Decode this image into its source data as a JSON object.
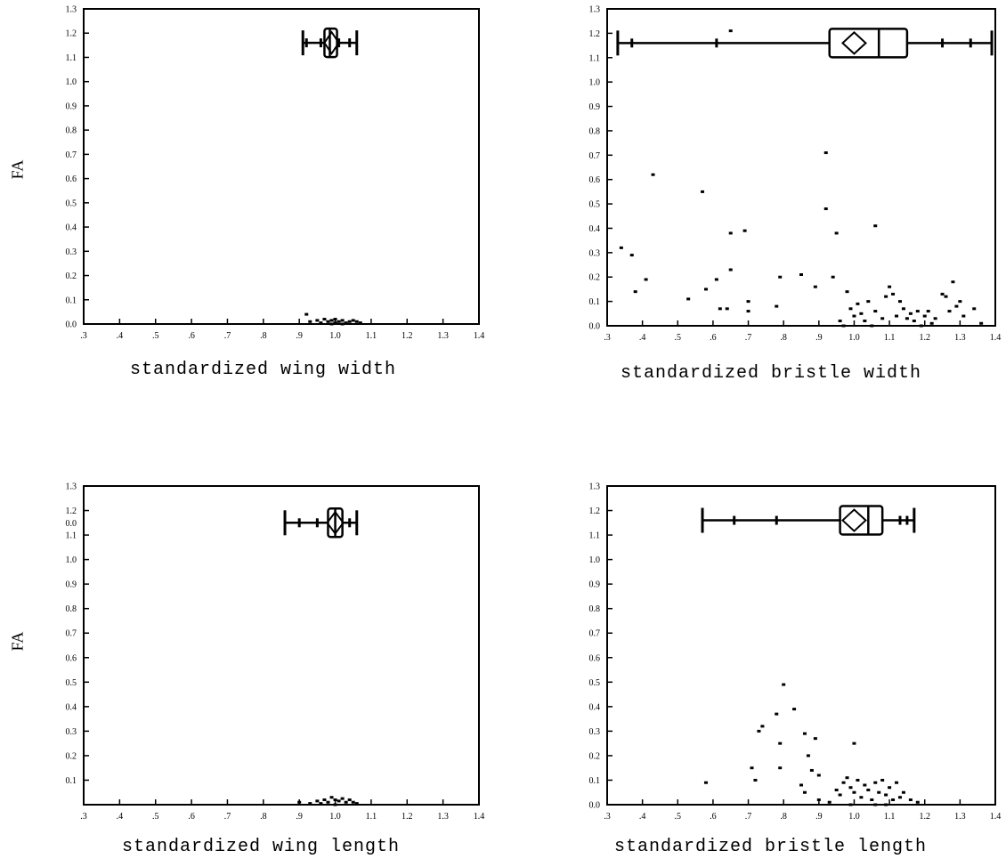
{
  "chart_data": [
    {
      "type": "scatter",
      "id": "wing-width",
      "xlabel": "standardized wing width",
      "ylabel": "FA",
      "xlim": [
        0.3,
        1.4
      ],
      "ylim": [
        0.0,
        1.3
      ],
      "x_ticks": [
        ".3",
        ".4",
        ".5",
        ".6",
        ".7",
        ".8",
        ".9",
        "1.0",
        "1.1",
        "1.2",
        "1.3",
        "1.4"
      ],
      "y_ticks": [
        "0.0",
        "0.1",
        "0.2",
        "0.3",
        "0.4",
        "0.5",
        "0.6",
        "0.7",
        "0.8",
        "0.9",
        "1.0",
        "1.1",
        "1.2",
        "1.3"
      ],
      "boxplot": {
        "y": 1.16,
        "whisker_low": 0.91,
        "whisker_high": 1.06,
        "q1": 0.97,
        "median": 0.985,
        "q3": 1.005,
        "mean": 0.99,
        "outliers": [
          0.92,
          0.96,
          1.01,
          1.04
        ]
      },
      "points": [
        [
          0.92,
          0.04
        ],
        [
          0.93,
          0.01
        ],
        [
          0.95,
          0.015
        ],
        [
          0.97,
          0.02
        ],
        [
          0.98,
          0.01
        ],
        [
          0.99,
          0.015
        ],
        [
          1.0,
          0.005
        ],
        [
          1.0,
          0.02
        ],
        [
          1.01,
          0.01
        ],
        [
          1.02,
          0.015
        ],
        [
          1.03,
          0.005
        ],
        [
          1.04,
          0.01
        ],
        [
          1.05,
          0.015
        ],
        [
          1.06,
          0.01
        ],
        [
          1.07,
          0.005
        ],
        [
          0.96,
          0.005
        ],
        [
          0.99,
          0.0
        ],
        [
          1.02,
          0.0
        ]
      ]
    },
    {
      "type": "scatter",
      "id": "bristle-width",
      "xlabel": "standardized bristle width",
      "ylabel": "",
      "xlim": [
        0.3,
        1.4
      ],
      "ylim": [
        0.0,
        1.3
      ],
      "x_ticks": [
        ".3",
        ".4",
        ".5",
        ".6",
        ".7",
        ".8",
        ".9",
        "1.0",
        "1.1",
        "1.2",
        "1.3",
        "1.4"
      ],
      "y_ticks": [
        "0.0",
        "0.1",
        "0.2",
        "0.3",
        "0.4",
        "0.5",
        "0.6",
        "0.7",
        "0.8",
        "0.9",
        "1.0",
        "1.1",
        "1.2",
        "1.3"
      ],
      "boxplot": {
        "y": 1.16,
        "whisker_low": 0.33,
        "whisker_high": 1.39,
        "q1": 0.93,
        "median": 1.07,
        "q3": 1.15,
        "mean": 1.0,
        "outliers": [
          0.37,
          0.61,
          1.25,
          1.33
        ]
      },
      "points": [
        [
          0.65,
          1.21
        ],
        [
          0.34,
          0.32
        ],
        [
          0.37,
          0.29
        ],
        [
          0.38,
          0.14
        ],
        [
          0.41,
          0.19
        ],
        [
          0.43,
          0.62
        ],
        [
          0.53,
          0.11
        ],
        [
          0.57,
          0.55
        ],
        [
          0.58,
          0.15
        ],
        [
          0.61,
          0.19
        ],
        [
          0.62,
          0.07
        ],
        [
          0.64,
          0.07
        ],
        [
          0.65,
          0.38
        ],
        [
          0.65,
          0.23
        ],
        [
          0.69,
          0.39
        ],
        [
          0.7,
          0.1
        ],
        [
          0.7,
          0.06
        ],
        [
          0.78,
          0.08
        ],
        [
          0.79,
          0.2
        ],
        [
          0.85,
          0.21
        ],
        [
          0.89,
          0.16
        ],
        [
          0.92,
          0.71
        ],
        [
          0.92,
          0.48
        ],
        [
          0.94,
          0.2
        ],
        [
          0.95,
          0.38
        ],
        [
          0.96,
          0.02
        ],
        [
          0.98,
          0.14
        ],
        [
          0.99,
          0.07
        ],
        [
          1.0,
          0.04
        ],
        [
          1.01,
          0.09
        ],
        [
          1.02,
          0.05
        ],
        [
          1.03,
          0.02
        ],
        [
          1.04,
          0.1
        ],
        [
          1.06,
          0.41
        ],
        [
          1.06,
          0.06
        ],
        [
          1.08,
          0.03
        ],
        [
          1.09,
          0.12
        ],
        [
          1.1,
          0.16
        ],
        [
          1.11,
          0.13
        ],
        [
          1.12,
          0.04
        ],
        [
          1.13,
          0.1
        ],
        [
          1.14,
          0.07
        ],
        [
          1.15,
          0.03
        ],
        [
          1.16,
          0.05
        ],
        [
          1.17,
          0.02
        ],
        [
          1.18,
          0.06
        ],
        [
          1.2,
          0.04
        ],
        [
          1.21,
          0.06
        ],
        [
          1.22,
          0.01
        ],
        [
          1.23,
          0.03
        ],
        [
          1.25,
          0.13
        ],
        [
          1.26,
          0.12
        ],
        [
          1.27,
          0.06
        ],
        [
          1.28,
          0.18
        ],
        [
          1.29,
          0.08
        ],
        [
          1.3,
          0.1
        ],
        [
          1.31,
          0.04
        ],
        [
          1.34,
          0.07
        ],
        [
          1.36,
          0.01
        ],
        [
          0.97,
          0.0
        ],
        [
          1.05,
          0.0
        ],
        [
          1.19,
          0.0
        ]
      ]
    },
    {
      "type": "scatter",
      "id": "wing-length",
      "xlabel": "standardized wing length",
      "ylabel": "FA",
      "xlim": [
        0.3,
        1.4
      ],
      "ylim": [
        0.0,
        1.3
      ],
      "x_ticks": [
        ".3",
        ".4",
        ".5",
        ".6",
        ".7",
        ".8",
        ".9",
        "1.0",
        "1.1",
        "1.2",
        "1.3",
        "1.4"
      ],
      "y_ticks": [
        "",
        "0.1",
        "0.2",
        "0.3",
        "0.4",
        "0.5",
        "0.6",
        "0.7",
        "0.8",
        "0.9",
        "1.0",
        "1.1",
        "1.2",
        "1.3"
      ],
      "y_extra_label": "0.0",
      "boxplot": {
        "y": 1.15,
        "whisker_low": 0.86,
        "whisker_high": 1.06,
        "q1": 0.98,
        "median": 1.0,
        "q3": 1.02,
        "mean": 1.0,
        "outliers": [
          0.9,
          0.95,
          1.04
        ]
      },
      "points": [
        [
          0.9,
          0.01
        ],
        [
          0.93,
          0.005
        ],
        [
          0.95,
          0.015
        ],
        [
          0.97,
          0.02
        ],
        [
          0.98,
          0.01
        ],
        [
          0.99,
          0.03
        ],
        [
          1.0,
          0.02
        ],
        [
          1.01,
          0.015
        ],
        [
          1.02,
          0.025
        ],
        [
          1.03,
          0.01
        ],
        [
          1.04,
          0.02
        ],
        [
          1.05,
          0.01
        ],
        [
          1.06,
          0.005
        ],
        [
          0.96,
          0.005
        ],
        [
          1.0,
          0.0
        ]
      ]
    },
    {
      "type": "scatter",
      "id": "bristle-length",
      "xlabel": "standardized bristle length",
      "ylabel": "",
      "xlim": [
        0.3,
        1.4
      ],
      "ylim": [
        0.0,
        1.3
      ],
      "x_ticks": [
        ".3",
        ".4",
        ".5",
        ".6",
        ".7",
        ".8",
        ".9",
        "1.0",
        "1.1",
        "1.2",
        "1.3",
        "1.4"
      ],
      "y_ticks": [
        "0.0",
        "0.1",
        "0.2",
        "0.3",
        "0.4",
        "0.5",
        "0.6",
        "0.7",
        "0.8",
        "0.9",
        "1.0",
        "1.1",
        "1.2",
        "1.3"
      ],
      "boxplot": {
        "y": 1.16,
        "whisker_low": 0.57,
        "whisker_high": 1.17,
        "q1": 0.96,
        "median": 1.04,
        "q3": 1.08,
        "mean": 1.0,
        "outliers": [
          0.66,
          0.78,
          1.13,
          1.15
        ]
      },
      "points": [
        [
          0.58,
          0.09
        ],
        [
          0.71,
          0.15
        ],
        [
          0.72,
          0.1
        ],
        [
          0.73,
          0.3
        ],
        [
          0.74,
          0.32
        ],
        [
          0.78,
          0.37
        ],
        [
          0.79,
          0.25
        ],
        [
          0.79,
          0.15
        ],
        [
          0.8,
          0.49
        ],
        [
          0.83,
          0.39
        ],
        [
          0.85,
          0.08
        ],
        [
          0.86,
          0.05
        ],
        [
          0.86,
          0.29
        ],
        [
          0.87,
          0.2
        ],
        [
          0.88,
          0.14
        ],
        [
          0.89,
          0.27
        ],
        [
          0.9,
          0.12
        ],
        [
          0.9,
          0.02
        ],
        [
          0.95,
          0.06
        ],
        [
          0.96,
          0.04
        ],
        [
          0.97,
          0.09
        ],
        [
          0.98,
          0.11
        ],
        [
          0.99,
          0.07
        ],
        [
          1.0,
          0.25
        ],
        [
          1.0,
          0.05
        ],
        [
          1.01,
          0.1
        ],
        [
          1.02,
          0.03
        ],
        [
          1.03,
          0.08
        ],
        [
          1.04,
          0.06
        ],
        [
          1.05,
          0.02
        ],
        [
          1.06,
          0.09
        ],
        [
          1.07,
          0.05
        ],
        [
          1.08,
          0.1
        ],
        [
          1.09,
          0.04
        ],
        [
          1.1,
          0.07
        ],
        [
          1.11,
          0.02
        ],
        [
          1.12,
          0.09
        ],
        [
          1.13,
          0.03
        ],
        [
          1.14,
          0.05
        ],
        [
          1.16,
          0.02
        ],
        [
          1.18,
          0.01
        ],
        [
          0.93,
          0.01
        ],
        [
          0.99,
          0.0
        ],
        [
          1.06,
          0.0
        ],
        [
          1.09,
          0.0
        ]
      ]
    }
  ]
}
